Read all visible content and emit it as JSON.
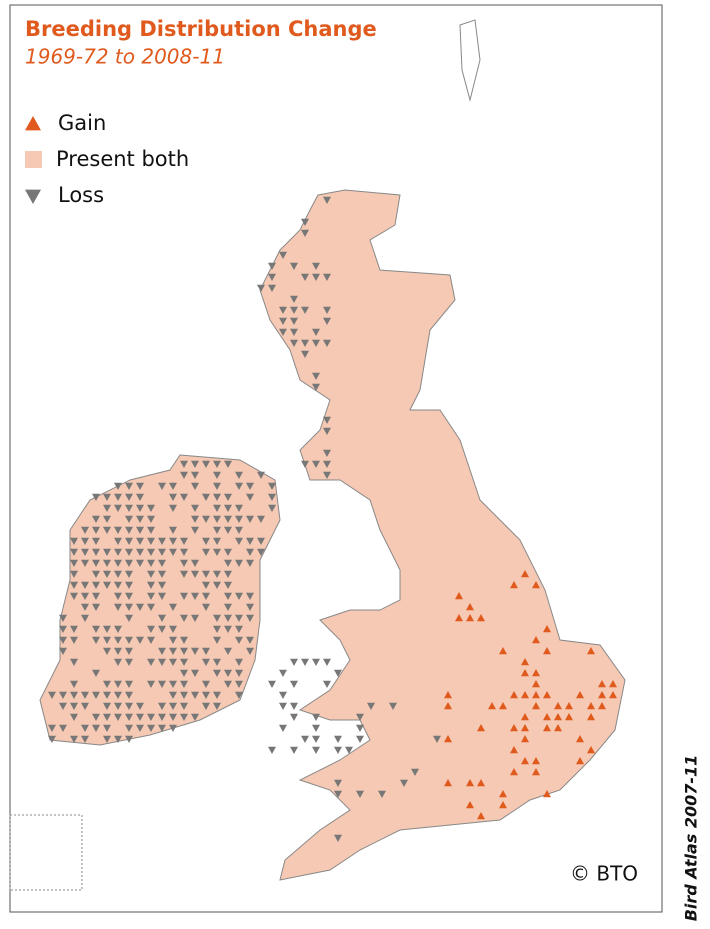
{
  "title": "Breeding Distribution Change",
  "subtitle": "1969-72 to 2008-11",
  "legend": [
    {
      "label": "Gain",
      "color": "#e05a1e"
    },
    {
      "label": "Present both",
      "color": "#f5c9b3"
    },
    {
      "label": "Loss",
      "color": "#777777"
    }
  ],
  "copyright": "© BTO",
  "side_label": "Bird Atlas 2007-11"
}
